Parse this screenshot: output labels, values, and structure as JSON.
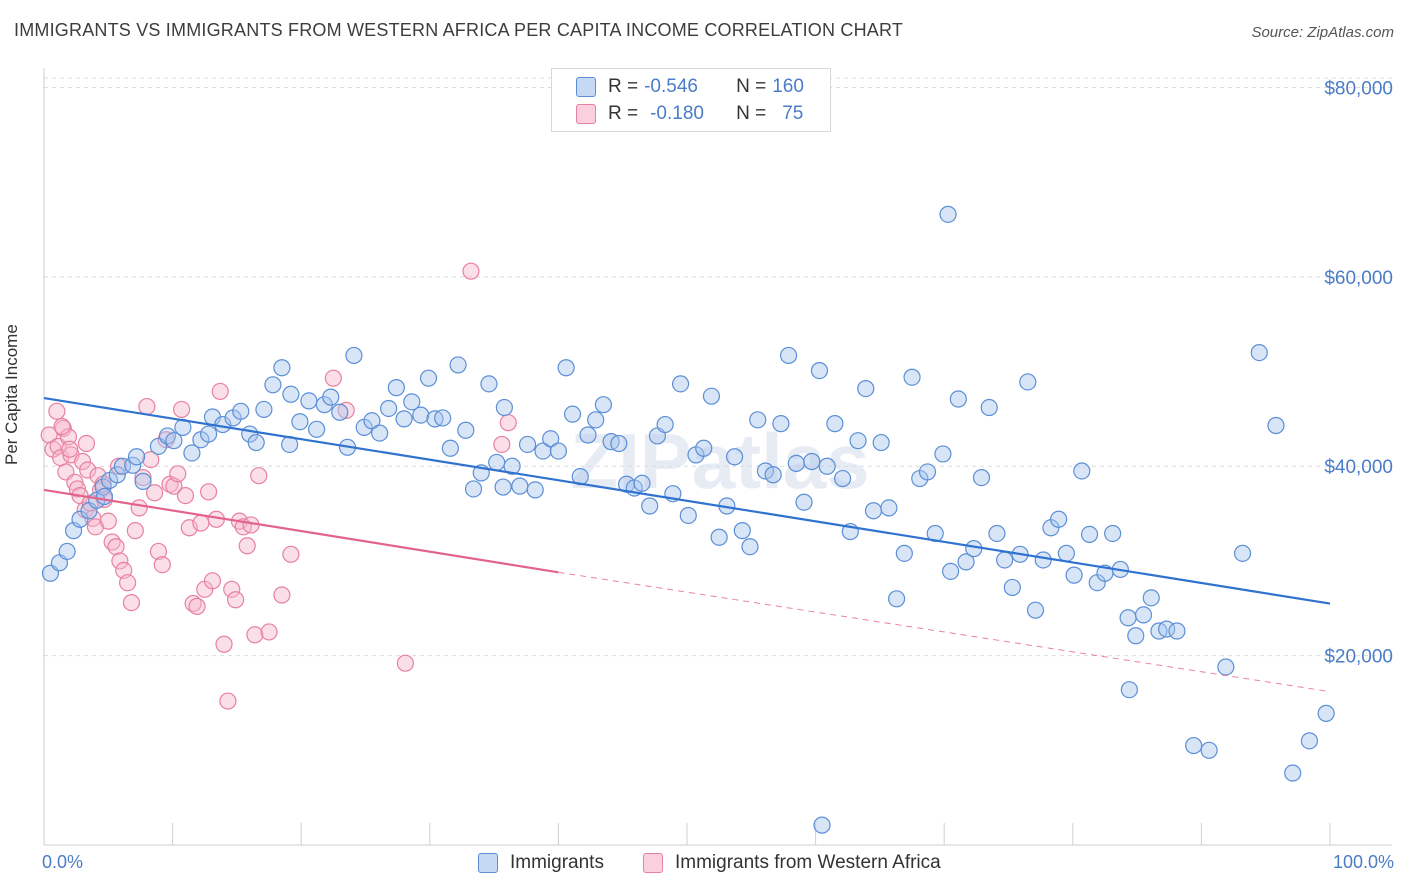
{
  "title": "IMMIGRANTS VS IMMIGRANTS FROM WESTERN AFRICA PER CAPITA INCOME CORRELATION CHART",
  "source": "Source: ZipAtlas.com",
  "watermark": "ZIPatlas",
  "colors": {
    "blue_fill": "#a9c6ee",
    "blue_stroke": "#5b8fd6",
    "blue_line": "#2f72cf",
    "pink_fill": "#f7b8cc",
    "pink_stroke": "#e8809f",
    "pink_line": "#e2648c",
    "accent_text": "#4a7cc8",
    "grid": "#dcdcdc"
  },
  "legend": {
    "rows": [
      {
        "r_label": "R =",
        "r_value": "-0.546",
        "n_label": "N =",
        "n_value": "160",
        "series": "Immigrants"
      },
      {
        "r_label": "R =",
        "r_value": "-0.180",
        "n_label": "N =",
        "n_value": "75",
        "series": "Immigrants from Western Africa"
      }
    ]
  },
  "bottom_legend": {
    "items": [
      "Immigrants",
      "Immigrants from Western Africa"
    ]
  },
  "chart_data": {
    "type": "scatter",
    "title": "IMMIGRANTS VS IMMIGRANTS FROM WESTERN AFRICA PER CAPITA INCOME CORRELATION CHART",
    "xlabel": "",
    "ylabel": "Per Capita Income",
    "x_tick_labels": [
      "0.0%",
      "100.0%"
    ],
    "y_tick_labels": [
      "$20,000",
      "$40,000",
      "$60,000",
      "$80,000"
    ],
    "y_ticks": [
      20000,
      40000,
      60000,
      80000
    ],
    "xlim": [
      0,
      100
    ],
    "ylim": [
      0,
      81000
    ],
    "grid": true,
    "legend_position": "top-center",
    "series": [
      {
        "name": "Immigrants",
        "trend": {
          "x0": 0,
          "y0": 47200,
          "x1": 100,
          "y1": 25500
        },
        "points": [
          [
            0.5,
            28700
          ],
          [
            1.2,
            29800
          ],
          [
            1.8,
            31000
          ],
          [
            2.3,
            33200
          ],
          [
            2.8,
            34400
          ],
          [
            3.5,
            35300
          ],
          [
            4.1,
            36400
          ],
          [
            4.6,
            37800
          ],
          [
            5.1,
            38500
          ],
          [
            5.7,
            39100
          ],
          [
            6.1,
            40000
          ],
          [
            6.9,
            40100
          ],
          [
            7.2,
            41000
          ],
          [
            8.9,
            42100
          ],
          [
            9.6,
            43200
          ],
          [
            10.1,
            42700
          ],
          [
            10.8,
            44100
          ],
          [
            11.5,
            41400
          ],
          [
            12.2,
            42800
          ],
          [
            13.1,
            45200
          ],
          [
            13.9,
            44400
          ],
          [
            14.7,
            45100
          ],
          [
            15.3,
            45800
          ],
          [
            16.0,
            43400
          ],
          [
            16.5,
            42500
          ],
          [
            17.1,
            46000
          ],
          [
            17.8,
            48600
          ],
          [
            18.5,
            50400
          ],
          [
            19.2,
            47600
          ],
          [
            19.9,
            44700
          ],
          [
            20.6,
            46900
          ],
          [
            21.2,
            43900
          ],
          [
            21.8,
            46500
          ],
          [
            22.3,
            47300
          ],
          [
            23.0,
            45700
          ],
          [
            23.6,
            42000
          ],
          [
            24.1,
            51700
          ],
          [
            24.9,
            44100
          ],
          [
            25.5,
            44800
          ],
          [
            26.1,
            43500
          ],
          [
            26.8,
            46100
          ],
          [
            27.4,
            48300
          ],
          [
            28.0,
            45000
          ],
          [
            28.6,
            46800
          ],
          [
            29.3,
            45400
          ],
          [
            29.9,
            49300
          ],
          [
            30.4,
            45000
          ],
          [
            31.0,
            45100
          ],
          [
            31.6,
            41900
          ],
          [
            32.2,
            50700
          ],
          [
            32.8,
            43800
          ],
          [
            33.4,
            37600
          ],
          [
            34.0,
            39300
          ],
          [
            34.6,
            48700
          ],
          [
            35.2,
            40400
          ],
          [
            35.8,
            46200
          ],
          [
            36.4,
            40000
          ],
          [
            37.0,
            37900
          ],
          [
            37.6,
            42300
          ],
          [
            38.2,
            37500
          ],
          [
            38.8,
            41600
          ],
          [
            39.4,
            42900
          ],
          [
            40.0,
            41600
          ],
          [
            40.6,
            50400
          ],
          [
            41.1,
            45500
          ],
          [
            41.7,
            38900
          ],
          [
            42.3,
            43300
          ],
          [
            42.9,
            44900
          ],
          [
            43.5,
            46500
          ],
          [
            44.1,
            42600
          ],
          [
            44.7,
            42400
          ],
          [
            45.3,
            38100
          ],
          [
            45.9,
            37700
          ],
          [
            46.5,
            38200
          ],
          [
            47.1,
            35800
          ],
          [
            47.7,
            43200
          ],
          [
            48.3,
            44400
          ],
          [
            48.9,
            37100
          ],
          [
            49.5,
            48700
          ],
          [
            50.1,
            34800
          ],
          [
            50.7,
            41200
          ],
          [
            51.3,
            41900
          ],
          [
            51.9,
            47400
          ],
          [
            52.5,
            32500
          ],
          [
            53.1,
            35800
          ],
          [
            53.7,
            41000
          ],
          [
            54.3,
            33200
          ],
          [
            54.9,
            31500
          ],
          [
            55.5,
            44900
          ],
          [
            56.1,
            39500
          ],
          [
            56.7,
            39100
          ],
          [
            57.3,
            44500
          ],
          [
            57.9,
            51700
          ],
          [
            58.5,
            40300
          ],
          [
            59.1,
            36200
          ],
          [
            59.7,
            40500
          ],
          [
            60.3,
            50100
          ],
          [
            60.9,
            40000
          ],
          [
            61.5,
            44500
          ],
          [
            62.1,
            38700
          ],
          [
            62.7,
            33100
          ],
          [
            63.3,
            42700
          ],
          [
            63.9,
            48200
          ],
          [
            64.5,
            35300
          ],
          [
            65.1,
            42500
          ],
          [
            65.7,
            35600
          ],
          [
            66.3,
            26000
          ],
          [
            66.9,
            30800
          ],
          [
            67.5,
            49400
          ],
          [
            68.1,
            38700
          ],
          [
            68.7,
            39400
          ],
          [
            69.3,
            32900
          ],
          [
            69.9,
            41300
          ],
          [
            70.5,
            28900
          ],
          [
            71.1,
            47100
          ],
          [
            71.7,
            29900
          ],
          [
            72.3,
            31300
          ],
          [
            72.9,
            38800
          ],
          [
            73.5,
            46200
          ],
          [
            74.1,
            32900
          ],
          [
            74.7,
            30100
          ],
          [
            75.3,
            27200
          ],
          [
            75.9,
            30700
          ],
          [
            76.5,
            48900
          ],
          [
            77.1,
            24800
          ],
          [
            77.7,
            30100
          ],
          [
            78.3,
            33500
          ],
          [
            78.9,
            34400
          ],
          [
            79.5,
            30800
          ],
          [
            80.1,
            28500
          ],
          [
            80.7,
            39500
          ],
          [
            81.3,
            32800
          ],
          [
            81.9,
            27700
          ],
          [
            82.5,
            28700
          ],
          [
            83.1,
            32900
          ],
          [
            83.7,
            29100
          ],
          [
            84.3,
            24000
          ],
          [
            84.9,
            22100
          ],
          [
            85.5,
            24300
          ],
          [
            86.1,
            26100
          ],
          [
            86.7,
            22600
          ],
          [
            87.3,
            22800
          ],
          [
            88.1,
            22600
          ],
          [
            89.4,
            10500
          ],
          [
            90.6,
            10000
          ],
          [
            91.9,
            18800
          ],
          [
            93.2,
            30800
          ],
          [
            94.5,
            52000
          ],
          [
            95.8,
            44300
          ],
          [
            97.1,
            7600
          ],
          [
            98.4,
            11000
          ],
          [
            99.7,
            13900
          ],
          [
            60.5,
            2100
          ],
          [
            70.3,
            66600
          ],
          [
            84.4,
            16400
          ],
          [
            35.7,
            37800
          ],
          [
            12.8,
            43400
          ],
          [
            19.1,
            42300
          ],
          [
            7.7,
            38400
          ],
          [
            4.7,
            36800
          ]
        ]
      },
      {
        "name": "Immigrants from Western Africa",
        "trend": {
          "x0": 0,
          "y0": 37500,
          "x1": 40,
          "y1": 28800
        },
        "trend_extension": {
          "x0": 40,
          "y0": 28800,
          "x1": 100,
          "y1": 16200
        },
        "points": [
          [
            0.4,
            43300
          ],
          [
            0.7,
            41800
          ],
          [
            1.0,
            45800
          ],
          [
            1.1,
            42100
          ],
          [
            1.3,
            40900
          ],
          [
            1.5,
            44000
          ],
          [
            1.7,
            39400
          ],
          [
            1.9,
            43100
          ],
          [
            2.1,
            41200
          ],
          [
            2.4,
            38300
          ],
          [
            2.6,
            37600
          ],
          [
            2.8,
            36900
          ],
          [
            3.0,
            40500
          ],
          [
            3.2,
            35400
          ],
          [
            3.4,
            39600
          ],
          [
            3.6,
            36100
          ],
          [
            3.8,
            34500
          ],
          [
            4.0,
            33600
          ],
          [
            4.2,
            39000
          ],
          [
            4.4,
            37500
          ],
          [
            4.7,
            36500
          ],
          [
            5.0,
            34200
          ],
          [
            5.3,
            32000
          ],
          [
            5.6,
            31500
          ],
          [
            5.9,
            30000
          ],
          [
            6.2,
            29000
          ],
          [
            6.5,
            27700
          ],
          [
            6.8,
            25600
          ],
          [
            7.1,
            33200
          ],
          [
            7.4,
            35600
          ],
          [
            7.7,
            38800
          ],
          [
            8.0,
            46300
          ],
          [
            8.3,
            40700
          ],
          [
            8.6,
            37200
          ],
          [
            8.9,
            31000
          ],
          [
            9.2,
            29600
          ],
          [
            9.5,
            42800
          ],
          [
            9.8,
            38100
          ],
          [
            10.1,
            37900
          ],
          [
            10.4,
            39200
          ],
          [
            10.7,
            46000
          ],
          [
            11.0,
            36900
          ],
          [
            11.3,
            33500
          ],
          [
            11.6,
            25500
          ],
          [
            11.9,
            25200
          ],
          [
            12.2,
            34000
          ],
          [
            12.5,
            27000
          ],
          [
            12.8,
            37300
          ],
          [
            13.1,
            27900
          ],
          [
            13.4,
            34400
          ],
          [
            13.7,
            47900
          ],
          [
            14.0,
            21200
          ],
          [
            14.3,
            15200
          ],
          [
            14.6,
            27000
          ],
          [
            14.9,
            25900
          ],
          [
            15.2,
            34200
          ],
          [
            15.5,
            33600
          ],
          [
            15.8,
            31600
          ],
          [
            16.1,
            33800
          ],
          [
            16.4,
            22200
          ],
          [
            16.7,
            39000
          ],
          [
            17.5,
            22500
          ],
          [
            18.5,
            26400
          ],
          [
            19.2,
            30700
          ],
          [
            22.5,
            49300
          ],
          [
            23.5,
            45900
          ],
          [
            28.1,
            19200
          ],
          [
            33.2,
            60600
          ],
          [
            36.1,
            44600
          ],
          [
            35.6,
            42300
          ],
          [
            5.8,
            40000
          ],
          [
            4.6,
            38100
          ],
          [
            3.3,
            42400
          ],
          [
            2.0,
            41800
          ],
          [
            1.4,
            44200
          ]
        ]
      }
    ]
  }
}
